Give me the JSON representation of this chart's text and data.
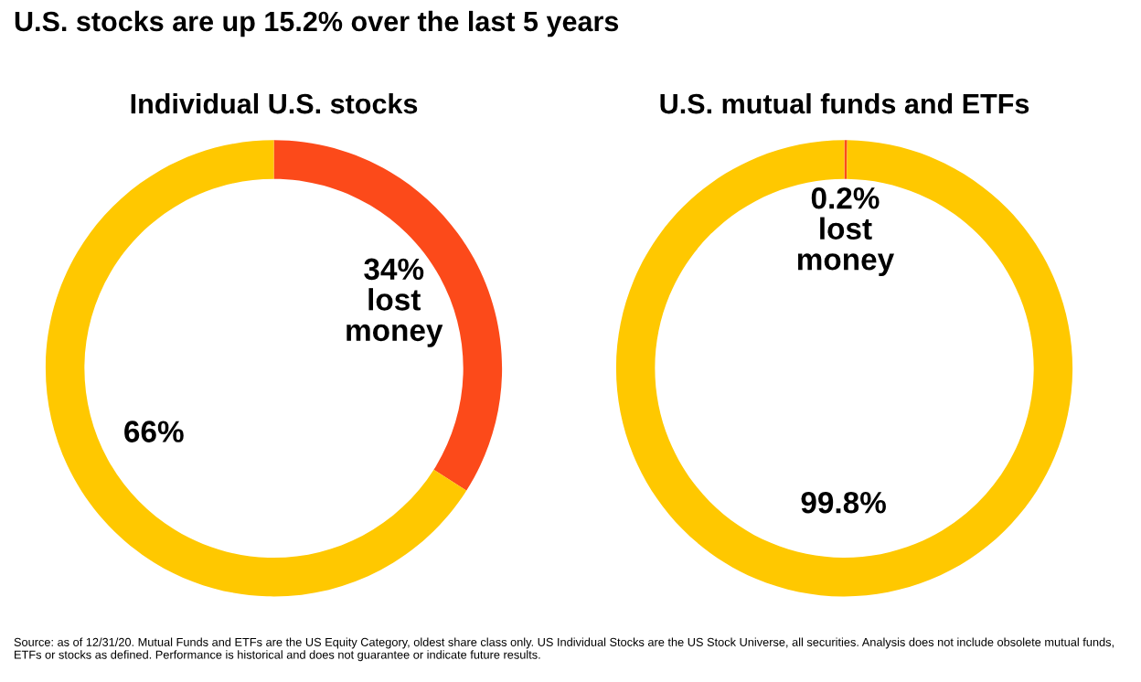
{
  "chart_data": [
    {
      "type": "donut",
      "title": "Individual U.S. stocks",
      "categories": [
        "lost money",
        null
      ],
      "values": [
        34,
        66
      ],
      "value_labels": [
        "34%",
        "66%"
      ],
      "colors": [
        "#fc4a1a",
        "#ffc800"
      ],
      "annotations": [
        "U.S. stocks are up 15.2% over the last 5 years"
      ]
    },
    {
      "type": "donut",
      "title": "U.S. mutual funds and ETFs",
      "categories": [
        "lost money",
        null
      ],
      "values": [
        0.2,
        99.8
      ],
      "value_labels": [
        "0.2%",
        "99.8%"
      ],
      "colors": [
        "#fc4a1a",
        "#ffc800"
      ],
      "annotations": [
        "Source: as of 12/31/20. Mutual Funds and ETFs are the US Equity Category, oldest share class only. US Individual Stocks are the US Stock Universe, all securities. Analysis does not include obsolete mutual funds, ETFs or stocks as defined. Performance is historical and does not guarantee or indicate future results."
      ]
    }
  ]
}
